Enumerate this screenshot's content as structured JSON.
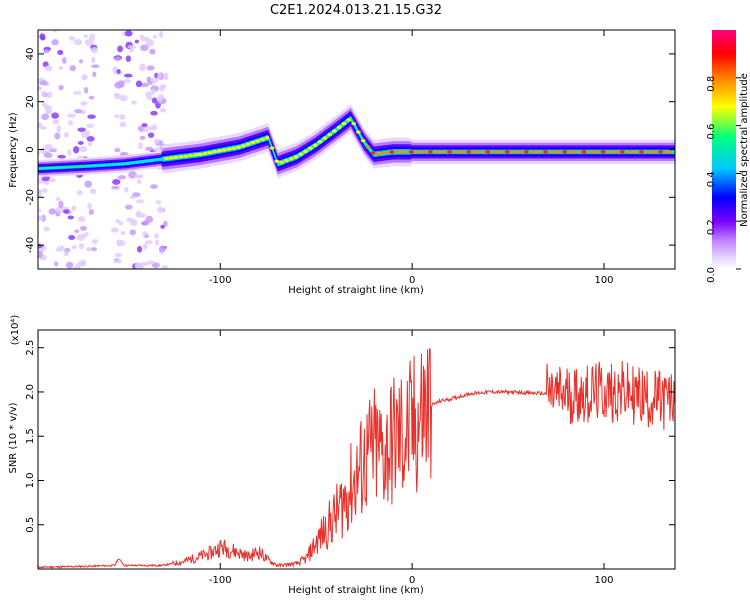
{
  "title": "C2E1.2024.013.21.15.G32",
  "chart_data": [
    {
      "type": "heatmap",
      "xlabel": "Height of straight line (km)",
      "ylabel": "Frequency (Hz)",
      "xlim": [
        -195,
        137
      ],
      "ylim": [
        -50,
        50
      ],
      "xticks": [
        -100,
        0,
        100
      ],
      "yticks": [
        -40,
        -20,
        0,
        20,
        40
      ],
      "colorbar": {
        "label": "Normalized spectral amplitude",
        "range": [
          0,
          1
        ],
        "ticks": [
          "0.0",
          "0.2",
          "0.4",
          "0.6",
          "0.8"
        ],
        "tick_values": [
          0,
          0.2,
          0.4,
          0.6,
          0.8
        ],
        "colormap": [
          "#ffffff",
          "#e6d0ff",
          "#c080ff",
          "#7a00ff",
          "#0000ff",
          "#00c8ff",
          "#00ff80",
          "#ffff00",
          "#ff8000",
          "#ff0000",
          "#ff0080"
        ]
      },
      "ridge": {
        "height_km": [
          -195,
          -170,
          -150,
          -130,
          -110,
          -90,
          -75,
          -70,
          -60,
          -50,
          -40,
          -32,
          -25,
          -20,
          -10,
          0,
          20,
          60,
          100,
          137
        ],
        "freq_hz": [
          -8,
          -7,
          -6,
          -4,
          -2,
          1,
          5,
          -6,
          -3,
          2,
          8,
          13,
          3,
          -2,
          -1,
          -1,
          -1,
          -1,
          -1,
          -1
        ]
      }
    },
    {
      "type": "line",
      "xlabel": "Height of straight line (km)",
      "ylabel": "SNR (10 * v/v)",
      "y_multiplier": "(x10⁴)",
      "xlim": [
        -195,
        137
      ],
      "ylim": [
        0,
        2.7
      ],
      "xticks": [
        -100,
        0,
        100
      ],
      "yticks": [
        "0.5",
        "1.0",
        "1.5",
        "2.0",
        "2.5"
      ],
      "ytick_values": [
        0.5,
        1.0,
        1.5,
        2.0,
        2.5
      ],
      "line_color": "#e8302a",
      "series": [
        {
          "x": [
            -195,
            -170,
            -155,
            -153,
            -150,
            -130,
            -120,
            -105,
            -100,
            -95,
            -90,
            -85,
            -80,
            -75,
            -70,
            -60,
            -55,
            -50,
            -45,
            -40,
            -35,
            -30,
            -25,
            -20,
            -15,
            -10,
            -5,
            0,
            5,
            10,
            15,
            20,
            25,
            30,
            40,
            50,
            60,
            70,
            80,
            90,
            100,
            110,
            120,
            130,
            137
          ],
          "y": [
            0.02,
            0.03,
            0.04,
            0.12,
            0.04,
            0.04,
            0.08,
            0.18,
            0.25,
            0.22,
            0.18,
            0.14,
            0.2,
            0.1,
            0.04,
            0.06,
            0.12,
            0.3,
            0.45,
            0.6,
            0.8,
            1.0,
            1.2,
            1.35,
            1.3,
            1.45,
            1.5,
            1.55,
            1.75,
            1.85,
            1.9,
            1.92,
            1.95,
            1.98,
            2.0,
            2.0,
            1.99,
            1.98,
            1.97,
            1.98,
            2.0,
            2.0,
            1.95,
            1.9,
            1.9
          ]
        }
      ]
    }
  ]
}
